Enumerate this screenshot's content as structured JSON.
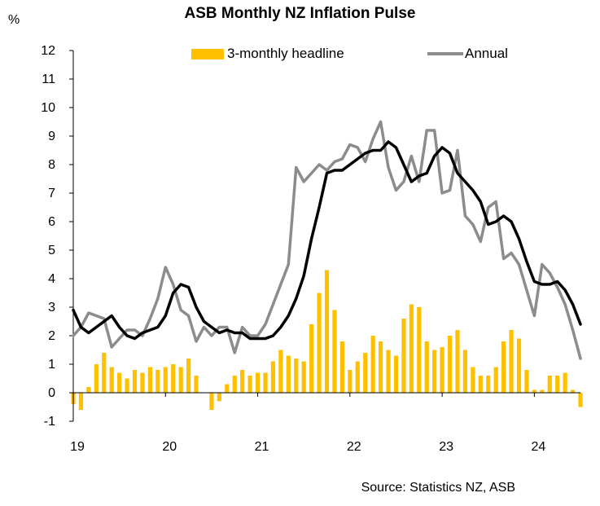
{
  "chart_data": {
    "type": "bar",
    "title": "ASB Monthly NZ Inflation Pulse",
    "ylabel": "%",
    "source": "Source: Statistics NZ, ASB",
    "ylim": [
      -1,
      12
    ],
    "y_ticks": [
      "-1",
      "0",
      "1",
      "2",
      "3",
      "4",
      "5",
      "6",
      "7",
      "8",
      "9",
      "10",
      "11",
      "12"
    ],
    "x_tick_labels": [
      "19",
      "20",
      "21",
      "22",
      "23",
      "24"
    ],
    "legend_placement": "top",
    "grid": false,
    "x": [
      "Jan-19",
      "Feb-19",
      "Mar-19",
      "Apr-19",
      "May-19",
      "Jun-19",
      "Jul-19",
      "Aug-19",
      "Sep-19",
      "Oct-19",
      "Nov-19",
      "Dec-19",
      "Jan-20",
      "Feb-20",
      "Mar-20",
      "Apr-20",
      "May-20",
      "Jun-20",
      "Jul-20",
      "Aug-20",
      "Sep-20",
      "Oct-20",
      "Nov-20",
      "Dec-20",
      "Jan-21",
      "Feb-21",
      "Mar-21",
      "Apr-21",
      "May-21",
      "Jun-21",
      "Jul-21",
      "Aug-21",
      "Sep-21",
      "Oct-21",
      "Nov-21",
      "Dec-21",
      "Jan-22",
      "Feb-22",
      "Mar-22",
      "Apr-22",
      "May-22",
      "Jun-22",
      "Jul-22",
      "Aug-22",
      "Sep-22",
      "Oct-22",
      "Nov-22",
      "Dec-22",
      "Jan-23",
      "Feb-23",
      "Mar-23",
      "Apr-23",
      "May-23",
      "Jun-23",
      "Jul-23",
      "Aug-23",
      "Sep-23",
      "Oct-23",
      "Nov-23",
      "Dec-23",
      "Jan-24",
      "Feb-24",
      "Mar-24",
      "Apr-24",
      "May-24",
      "Jun-24",
      "Jul-24"
    ],
    "series": [
      {
        "name": "3-monthly headline",
        "type": "bar",
        "color": "#FFC000",
        "values": [
          -0.4,
          -0.6,
          0.2,
          1.0,
          1.4,
          0.9,
          0.7,
          0.5,
          0.8,
          0.7,
          0.9,
          0.8,
          0.9,
          1.0,
          0.9,
          1.2,
          0.6,
          0.0,
          -0.6,
          -0.3,
          0.3,
          0.6,
          0.8,
          0.6,
          0.7,
          0.7,
          1.1,
          1.5,
          1.3,
          1.2,
          1.1,
          2.4,
          3.5,
          4.3,
          2.9,
          1.8,
          0.8,
          1.1,
          1.4,
          2.0,
          1.8,
          1.5,
          1.3,
          2.6,
          3.1,
          3.0,
          1.8,
          1.5,
          1.6,
          2.0,
          2.2,
          1.5,
          0.9,
          0.6,
          0.6,
          0.9,
          1.8,
          2.2,
          1.9,
          0.8,
          0.1,
          0.1,
          0.6,
          0.6,
          0.7,
          0.1,
          -0.5
        ]
      },
      {
        "name": "Annual",
        "type": "line",
        "color": "#8C8C8C",
        "values": [
          2.0,
          2.3,
          2.8,
          2.7,
          2.6,
          1.6,
          1.9,
          2.2,
          2.2,
          2.0,
          2.6,
          3.3,
          4.4,
          3.8,
          2.9,
          2.7,
          1.8,
          2.3,
          2.0,
          2.3,
          2.3,
          1.4,
          2.3,
          2.0,
          2.0,
          2.4,
          3.1,
          3.8,
          4.5,
          7.9,
          7.4,
          7.7,
          8.0,
          7.8,
          8.1,
          8.2,
          8.7,
          8.6,
          8.1,
          8.9,
          9.5,
          7.9,
          7.1,
          7.4,
          8.3,
          7.4,
          9.2,
          9.2,
          7.0,
          7.1,
          8.5,
          6.2,
          5.9,
          5.3,
          6.5,
          6.7,
          4.7,
          4.9,
          4.5,
          3.6,
          2.7,
          4.5,
          4.2,
          3.7,
          3.1,
          2.2,
          1.2
        ]
      },
      {
        "color": "#000000",
        "type": "line",
        "values": [
          2.9,
          2.3,
          2.1,
          2.3,
          2.5,
          2.7,
          2.3,
          2.0,
          1.9,
          2.1,
          2.2,
          2.3,
          2.7,
          3.5,
          3.8,
          3.7,
          3.0,
          2.5,
          2.3,
          2.1,
          2.2,
          2.1,
          2.1,
          1.9,
          1.9,
          1.9,
          2.0,
          2.3,
          2.7,
          3.3,
          4.1,
          5.4,
          6.5,
          7.7,
          7.8,
          7.8,
          8.0,
          8.2,
          8.4,
          8.5,
          8.5,
          8.8,
          8.6,
          8.0,
          7.4,
          7.6,
          7.7,
          8.3,
          8.6,
          8.4,
          7.7,
          7.4,
          7.1,
          6.7,
          5.9,
          6.0,
          6.2,
          6.0,
          5.4,
          4.6,
          3.9,
          3.8,
          3.8,
          3.9,
          3.6,
          3.1,
          2.4
        ]
      }
    ]
  }
}
